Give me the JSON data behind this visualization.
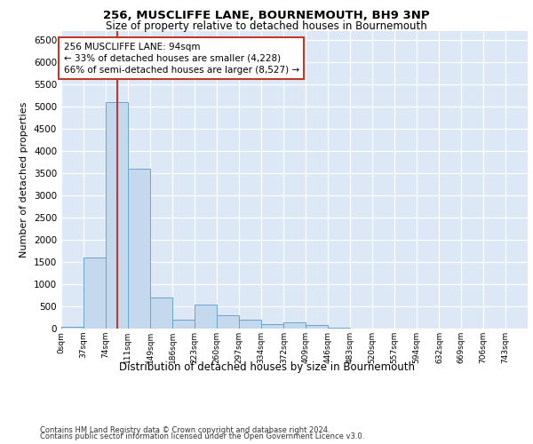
{
  "title": "256, MUSCLIFFE LANE, BOURNEMOUTH, BH9 3NP",
  "subtitle": "Size of property relative to detached houses in Bournemouth",
  "xlabel": "Distribution of detached houses by size in Bournemouth",
  "ylabel": "Number of detached properties",
  "footer_line1": "Contains HM Land Registry data © Crown copyright and database right 2024.",
  "footer_line2": "Contains public sector information licensed under the Open Government Licence v3.0.",
  "bar_color": "#c5d9ee",
  "bar_edge_color": "#6ba3cb",
  "vline_color": "#c0392b",
  "vline_value": 94,
  "annotation_text": "256 MUSCLIFFE LANE: 94sqm\n← 33% of detached houses are smaller (4,228)\n66% of semi-detached houses are larger (8,527) →",
  "annotation_box_color": "#c0392b",
  "categories": [
    "0sqm",
    "37sqm",
    "74sqm",
    "111sqm",
    "149sqm",
    "186sqm",
    "223sqm",
    "260sqm",
    "297sqm",
    "334sqm",
    "372sqm",
    "409sqm",
    "446sqm",
    "483sqm",
    "520sqm",
    "557sqm",
    "594sqm",
    "632sqm",
    "669sqm",
    "706sqm",
    "743sqm"
  ],
  "bin_edges": [
    0,
    37,
    74,
    111,
    149,
    186,
    223,
    260,
    297,
    334,
    372,
    409,
    446,
    483,
    520,
    557,
    594,
    632,
    669,
    706,
    743
  ],
  "bar_heights": [
    50,
    1600,
    5100,
    3600,
    700,
    200,
    550,
    300,
    200,
    100,
    150,
    75,
    25,
    0,
    0,
    0,
    0,
    0,
    0,
    0
  ],
  "ylim": [
    0,
    6700
  ],
  "yticks": [
    0,
    500,
    1000,
    1500,
    2000,
    2500,
    3000,
    3500,
    4000,
    4500,
    5000,
    5500,
    6000,
    6500
  ],
  "bg_color": "#dce8f5",
  "grid_color": "#ffffff"
}
